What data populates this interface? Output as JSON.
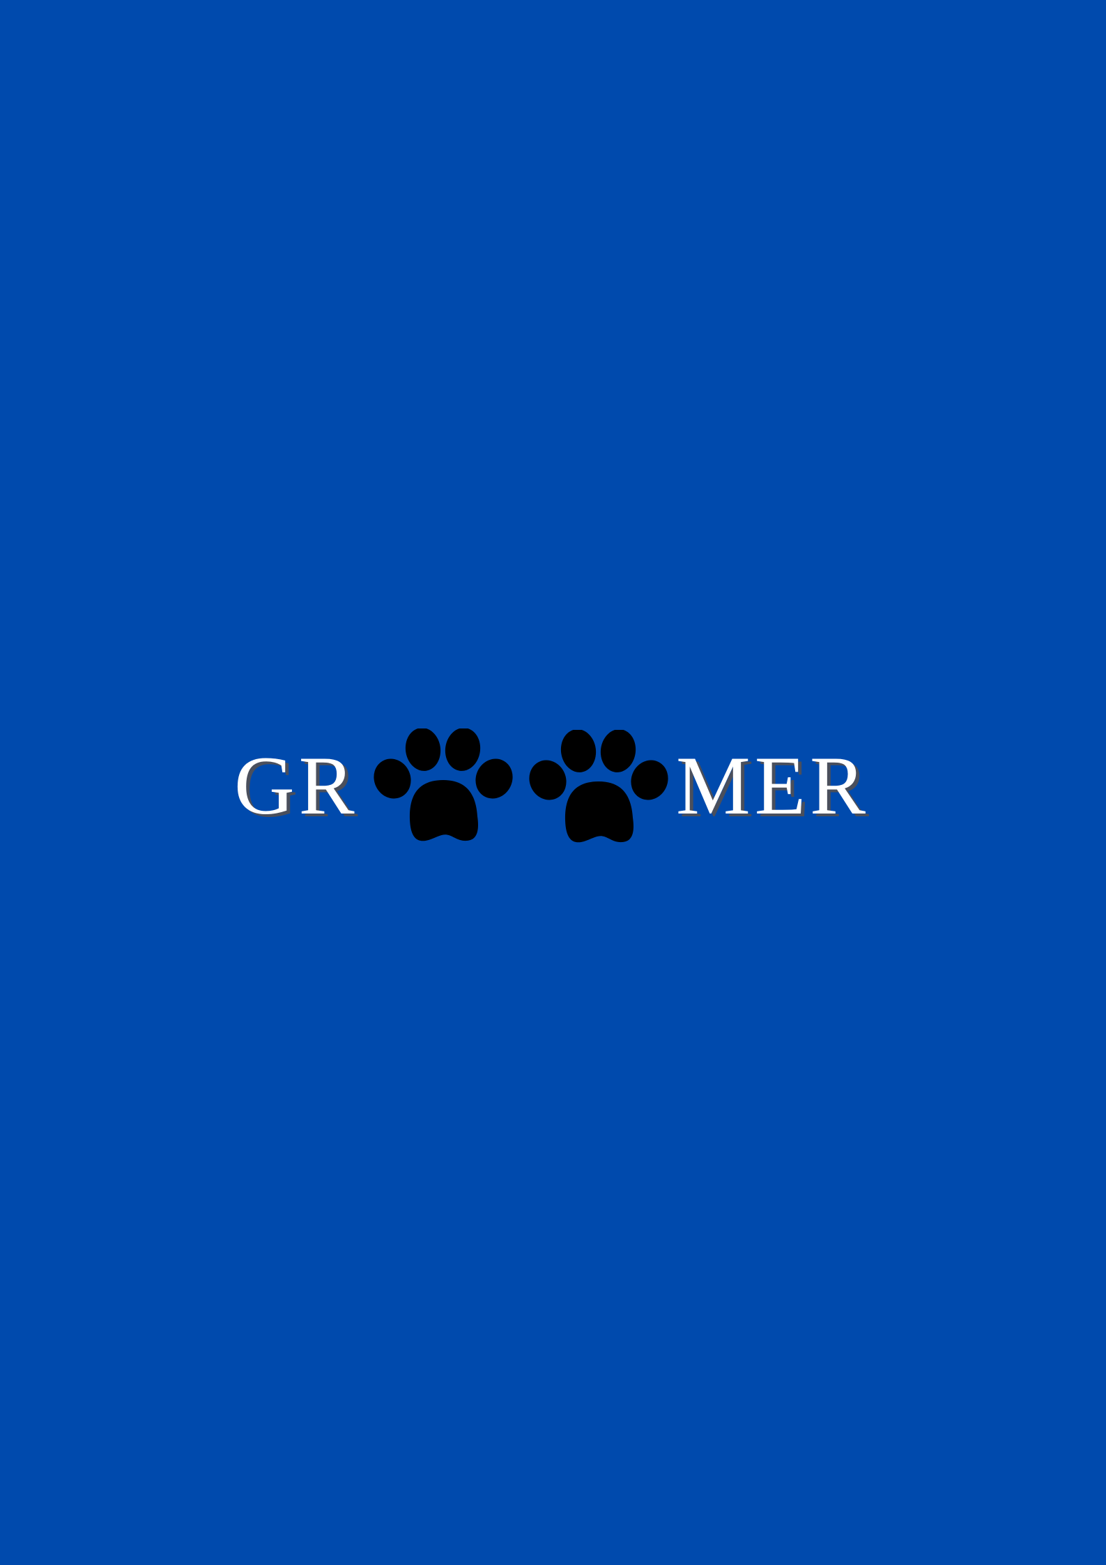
{
  "logo": {
    "text_left": "GR",
    "text_right": "MER",
    "icons": [
      "paw-print-icon",
      "paw-print-icon"
    ]
  },
  "colors": {
    "background": "#004aad",
    "text": "#ffffff",
    "text_shadow": "#4a4f5c",
    "paw": "#000000"
  }
}
